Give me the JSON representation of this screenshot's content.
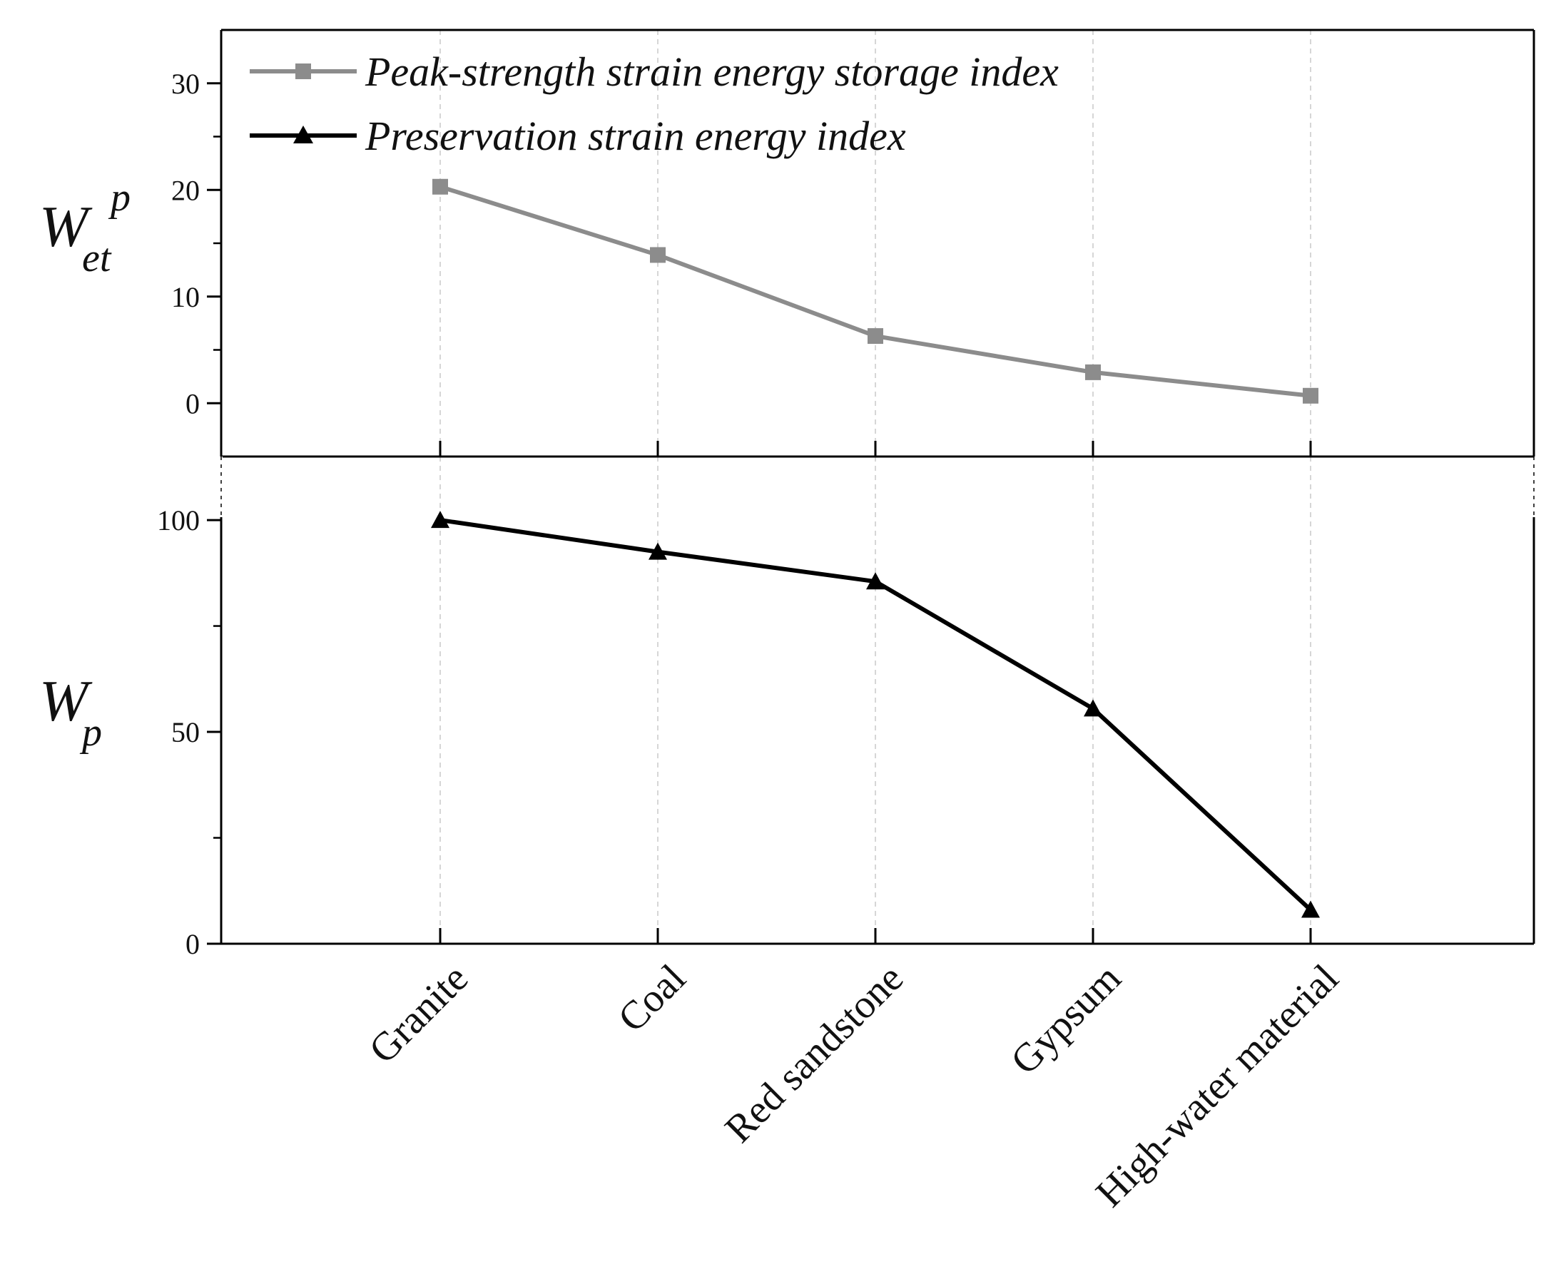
{
  "chart_data": {
    "type": "line",
    "categories": [
      "Granite",
      "Coal",
      "Red sandstone",
      "Gypsum",
      "High-water material"
    ],
    "panels": [
      {
        "name": "top",
        "ylabel": {
          "base": "W",
          "sub": "et",
          "sup": "p"
        },
        "ylim": [
          -5,
          35
        ],
        "yticks": [
          0,
          10,
          20,
          30
        ],
        "yticks_minor": [
          5,
          15,
          25
        ],
        "series": [
          {
            "name": "Peak-strength strain energy storage index",
            "marker": "square",
            "color": "#8c8c8c",
            "values": [
              20.3,
              13.9,
              6.3,
              2.9,
              0.7
            ]
          }
        ]
      },
      {
        "name": "bottom",
        "ylabel": {
          "base": "W",
          "sub": "p"
        },
        "ylim": [
          0,
          115
        ],
        "yticks": [
          0,
          50,
          100
        ],
        "yticks_minor": [
          25,
          75
        ],
        "series": [
          {
            "name": "Preservation strain energy index",
            "marker": "triangle",
            "color": "#000000",
            "values": [
              100,
              92.5,
              85.5,
              55.5,
              8
            ]
          }
        ]
      }
    ],
    "legend": {
      "placement": "top-left",
      "entries": [
        "Peak-strength strain energy storage index",
        "Preservation strain energy index"
      ]
    },
    "grid": "vertical-dashed"
  }
}
